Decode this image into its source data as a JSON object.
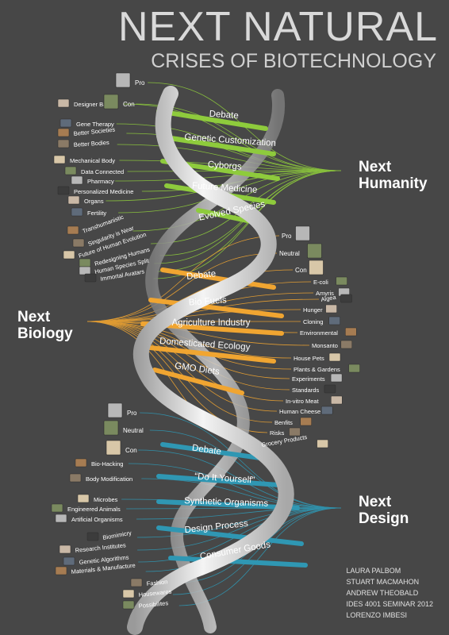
{
  "poster": {
    "title": "NEXT NATURAL",
    "subtitle": "CRISES OF BIOTECHNOLOGY"
  },
  "sections": {
    "humanity": {
      "hub_line1": "Next",
      "hub_line2": "Humanity",
      "color": "#8ecb3c",
      "rungs": [
        "Debate",
        "Genetic Customization",
        "Cyborgs",
        "Future Medicine",
        "Evolved Species"
      ],
      "debate_labels": [
        "Pro",
        "Con"
      ],
      "leaves": [
        "Designer Babies",
        "Gene Therapy",
        "Better Societies",
        "Better Bodies",
        "Mechanical Body",
        "Data Connected",
        "Pharmacy",
        "Personalized Medicine",
        "Organs",
        "Fertility",
        "Transhumanistic",
        "Singularity is Near",
        "Future of Human Evolution",
        "Redesigning Humans",
        "Human Species Split",
        "Immortal Avatars"
      ]
    },
    "biology": {
      "hub_line1": "Next",
      "hub_line2": "Biology",
      "color": "#f0a531",
      "rungs": [
        "Debate",
        "Bio Fuels",
        "Agriculture Industry",
        "Domesticated Ecology",
        "GMO Diets"
      ],
      "debate_labels": [
        "Pro",
        "Neutral",
        "Con"
      ],
      "leaves": [
        "E-coli",
        "Amyris",
        "Algea",
        "Hunger",
        "Cloning",
        "Environmental",
        "Monsanto",
        "House Pets",
        "Plants & Gardens",
        "Experiments",
        "Standards",
        "In-vitro Meat",
        "Human Cheese",
        "Benfits",
        "Risks",
        "Grocery Products"
      ]
    },
    "design": {
      "hub_line1": "Next",
      "hub_line2": "Design",
      "color": "#2f97b3",
      "rungs": [
        "Debate",
        "“Do It Yourself”",
        "Synthetic Organisms",
        "Design Process",
        "Consumer Goods"
      ],
      "debate_labels": [
        "Pro",
        "Neutral",
        "Con"
      ],
      "leaves": [
        "Bio-Hacking",
        "Body Modification",
        "Microbes",
        "Engineered Animals",
        "Artificial Organisms",
        "Biomimicry",
        "Research Institutes",
        "Genetic Algorithms",
        "Materials & Manufacture",
        "Fashion",
        "Housewares",
        "Possibilites"
      ]
    }
  },
  "credits": [
    "LAURA PALBOM",
    "STUART MACMAHON",
    "ANDREW THEOBALD",
    "IDES 4001 SEMINAR 2012",
    "LORENZO IMBESI"
  ]
}
